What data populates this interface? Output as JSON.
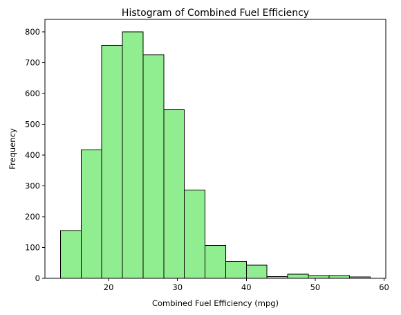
{
  "chart_data": {
    "type": "bar",
    "subtype": "histogram",
    "title": "Histogram of Combined Fuel Efficiency",
    "xlabel": "Combined Fuel Efficiency (mpg)",
    "ylabel": "Frequency",
    "bin_edges": [
      13.0,
      16.0,
      19.0,
      22.0,
      25.0,
      28.0,
      31.0,
      34.0,
      37.0,
      40.0,
      43.0,
      46.0,
      49.0,
      52.0,
      55.0,
      58.0
    ],
    "values": [
      155,
      417,
      757,
      801,
      726,
      548,
      287,
      107,
      55,
      43,
      6,
      13,
      9,
      9,
      5
    ],
    "xlim": [
      10.75,
      60.25
    ],
    "ylim": [
      0,
      841
    ],
    "xticks": [
      20,
      30,
      40,
      50,
      60
    ],
    "yticks": [
      0,
      100,
      200,
      300,
      400,
      500,
      600,
      700,
      800
    ],
    "bar_color": "#90EE90",
    "edge_color": "#000000",
    "grid": false,
    "legend": false
  }
}
